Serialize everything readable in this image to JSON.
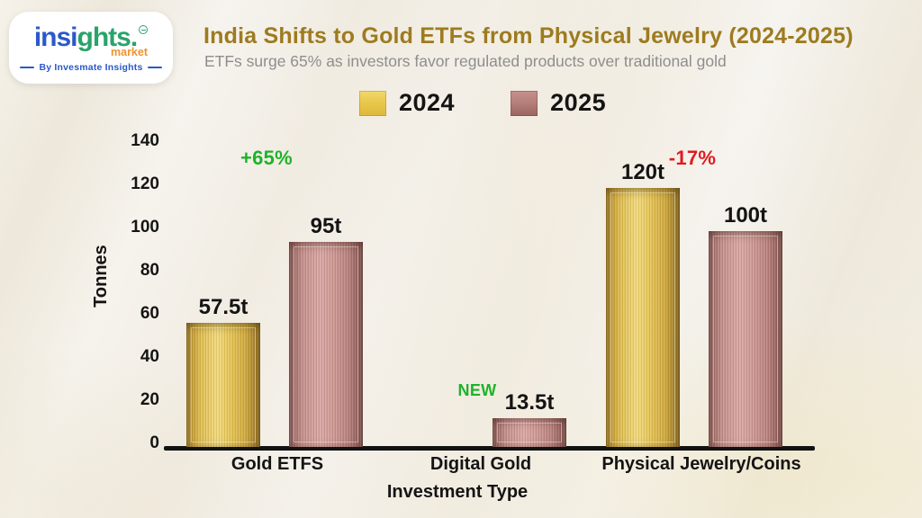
{
  "logo": {
    "brand_blue": "insi",
    "brand_green": "ghts.",
    "market": "market",
    "tagline": "By Invesmate Insights"
  },
  "header": {
    "title": "India Shifts to Gold ETFs from Physical Jewelry (2024-2025)",
    "subtitle": "ETFs surge 65% as investors favor regulated products over traditional gold"
  },
  "colors": {
    "title": "#9d7b1f",
    "subtitle": "#8e8e8e",
    "gold_series": "#E6C24F",
    "rose_series": "#C18B86",
    "annotation_green": "#1DB32A",
    "annotation_red": "#E21A1F",
    "axis_black": "#121212"
  },
  "chart_data": {
    "type": "bar",
    "title": "India Shifts to Gold ETFs from Physical Jewelry (2024-2025)",
    "subtitle": "ETFs surge 65% as investors favor regulated products over traditional gold",
    "categories": [
      "Gold ETFS",
      "Digital Gold",
      "Physical Jewelry/Coins"
    ],
    "series": [
      {
        "name": "2024",
        "color": "#E6C24F",
        "values": [
          57.5,
          null,
          120
        ],
        "labels": [
          "57.5t",
          null,
          "120t"
        ]
      },
      {
        "name": "2025",
        "color": "#C18B86",
        "values": [
          95,
          13.5,
          100
        ],
        "labels": [
          "95t",
          "13.5t",
          "100t"
        ]
      }
    ],
    "annotations": [
      {
        "text": "+65%",
        "color": "#1DB32A",
        "category_index": 0
      },
      {
        "text": "NEW",
        "color": "#1DB32A",
        "category_index": 1
      },
      {
        "text": "-17%",
        "color": "#E21A1F",
        "category_index": 2
      }
    ],
    "xlabel": "Investment Type",
    "ylabel": "Tonnes",
    "ylim": [
      0,
      140
    ],
    "ytick_step": 20,
    "yticks": [
      0,
      20,
      40,
      60,
      80,
      100,
      120,
      140
    ],
    "grid": false,
    "legend_position": "top",
    "unit_suffix": "t"
  }
}
